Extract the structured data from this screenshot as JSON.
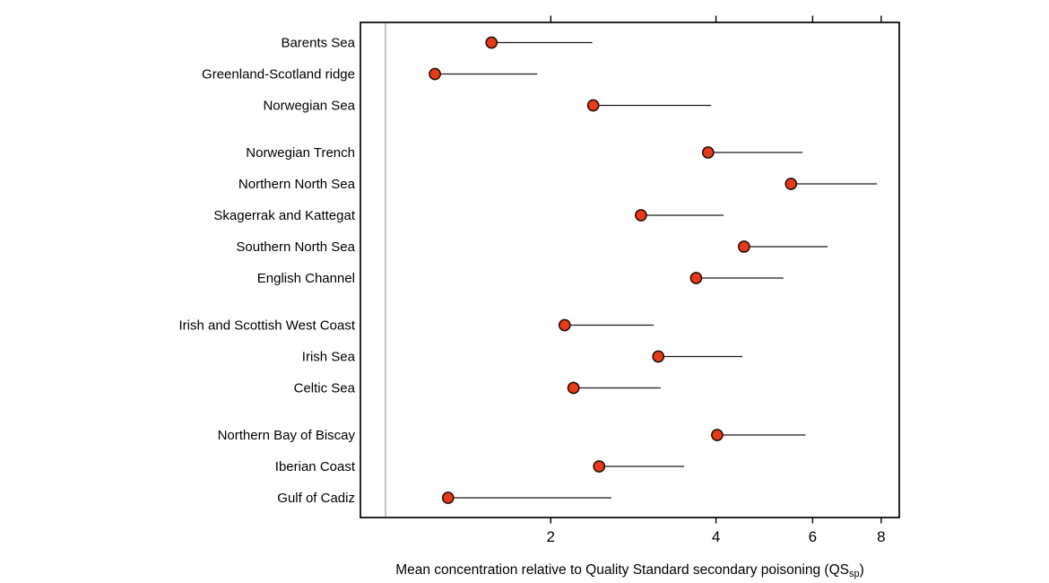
{
  "chart_data": {
    "type": "scatter",
    "subtype": "dot-with-upper-range",
    "title": "",
    "xlabel_prefix": "Mean concentration relative to Quality Standard secondary poisoning (QS",
    "xlabel_sub": "sp",
    "xlabel_suffix": ")",
    "ylabel": "",
    "xscale": "log",
    "xlim": [
      0.9,
      8.63
    ],
    "xticks": [
      2,
      4,
      6,
      8
    ],
    "reference_line_x": 1,
    "grid": false,
    "legend": "none",
    "categories": [
      "Barents Sea",
      "Greenland-Scotland ridge",
      "Norwegian Sea",
      "Norwegian Trench",
      "Northern North Sea",
      "Skagerrak and Kattegat",
      "Southern North Sea",
      "English Channel",
      "Irish and Scottish West Coast",
      "Irish Sea",
      "Celtic Sea",
      "Northern Bay of Biscay",
      "Iberian Coast",
      "Gulf of Cadiz"
    ],
    "groups": [
      0,
      0,
      0,
      1,
      1,
      1,
      1,
      1,
      2,
      2,
      2,
      3,
      3,
      3
    ],
    "series": [
      {
        "name": "mean",
        "values": [
          1.56,
          1.23,
          2.39,
          3.87,
          5.48,
          2.92,
          4.5,
          3.68,
          2.12,
          3.14,
          2.2,
          4.02,
          2.45,
          1.3
        ]
      },
      {
        "name": "upper",
        "values": [
          2.38,
          1.89,
          3.92,
          5.75,
          7.86,
          4.13,
          6.39,
          5.31,
          3.08,
          4.47,
          3.17,
          5.82,
          3.5,
          2.58
        ]
      }
    ],
    "colors": {
      "marker_fill": "#e8391a",
      "marker_stroke": "#1c0d02",
      "range_line": "#1a1a1a",
      "axis": "#000000",
      "reference_line": "#b3b3b3",
      "background": "#ffffff"
    }
  }
}
